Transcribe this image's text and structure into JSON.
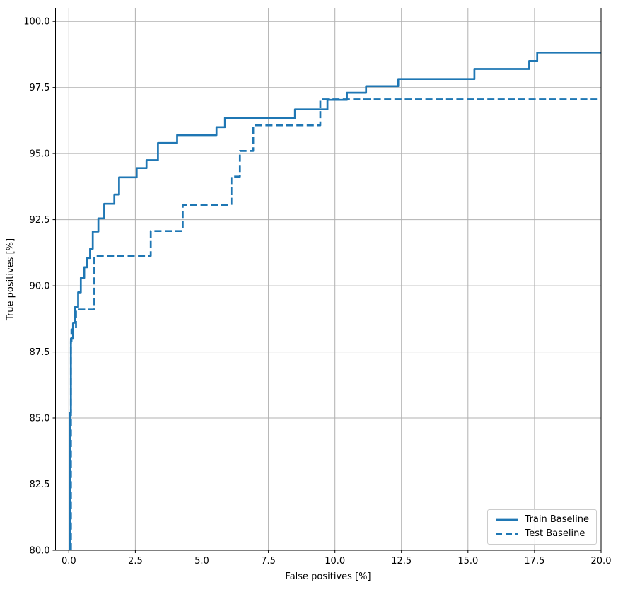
{
  "chart_data": {
    "type": "line",
    "subtype": "step-roc-curve",
    "xlabel": "False positives [%]",
    "ylabel": "True positives [%]",
    "xlim": [
      -0.5,
      20.0
    ],
    "ylim": [
      80.0,
      100.5
    ],
    "grid": true,
    "grid_color": "#b0b0b0",
    "axis_color": "#000000",
    "background_color": "#ffffff",
    "xticks": [
      0.0,
      2.5,
      5.0,
      7.5,
      10.0,
      12.5,
      15.0,
      17.5,
      20.0
    ],
    "xtick_labels": [
      "0.0",
      "2.5",
      "5.0",
      "7.5",
      "10.0",
      "12.5",
      "15.0",
      "17.5",
      "20.0"
    ],
    "yticks": [
      80.0,
      82.5,
      85.0,
      87.5,
      90.0,
      92.5,
      95.0,
      97.5,
      100.0
    ],
    "ytick_labels": [
      "80.0",
      "82.5",
      "85.0",
      "87.5",
      "90.0",
      "92.5",
      "95.0",
      "97.5",
      "100.0"
    ],
    "legend_position": "lower right",
    "series": [
      {
        "name": "Train Baseline",
        "color": "#1f77b4",
        "line_style": "solid",
        "line_width": 2.7,
        "points": [
          [
            0.05,
            80.0
          ],
          [
            0.05,
            85.2
          ],
          [
            0.08,
            85.2
          ],
          [
            0.08,
            88.0
          ],
          [
            0.16,
            88.0
          ],
          [
            0.16,
            88.6
          ],
          [
            0.24,
            88.6
          ],
          [
            0.24,
            89.2
          ],
          [
            0.35,
            89.2
          ],
          [
            0.35,
            89.75
          ],
          [
            0.45,
            89.75
          ],
          [
            0.45,
            90.3
          ],
          [
            0.58,
            90.3
          ],
          [
            0.58,
            90.7
          ],
          [
            0.69,
            90.7
          ],
          [
            0.69,
            91.05
          ],
          [
            0.8,
            91.05
          ],
          [
            0.8,
            91.4
          ],
          [
            0.9,
            91.4
          ],
          [
            0.9,
            92.05
          ],
          [
            1.11,
            92.05
          ],
          [
            1.11,
            92.55
          ],
          [
            1.33,
            92.55
          ],
          [
            1.33,
            93.1
          ],
          [
            1.71,
            93.1
          ],
          [
            1.71,
            93.45
          ],
          [
            1.89,
            93.45
          ],
          [
            1.89,
            94.1
          ],
          [
            2.55,
            94.1
          ],
          [
            2.55,
            94.45
          ],
          [
            2.92,
            94.45
          ],
          [
            2.92,
            94.75
          ],
          [
            3.35,
            94.75
          ],
          [
            3.35,
            95.4
          ],
          [
            4.07,
            95.4
          ],
          [
            4.07,
            95.7
          ],
          [
            5.55,
            95.7
          ],
          [
            5.55,
            96.0
          ],
          [
            5.87,
            96.0
          ],
          [
            5.87,
            96.35
          ],
          [
            8.5,
            96.35
          ],
          [
            8.5,
            96.67
          ],
          [
            9.72,
            96.67
          ],
          [
            9.72,
            97.03
          ],
          [
            10.45,
            97.03
          ],
          [
            10.45,
            97.3
          ],
          [
            11.17,
            97.3
          ],
          [
            11.17,
            97.55
          ],
          [
            12.38,
            97.55
          ],
          [
            12.38,
            97.82
          ],
          [
            15.24,
            97.82
          ],
          [
            15.24,
            98.2
          ],
          [
            17.3,
            98.2
          ],
          [
            17.3,
            98.5
          ],
          [
            17.6,
            98.5
          ],
          [
            17.6,
            98.82
          ],
          [
            20.0,
            98.82
          ]
        ]
      },
      {
        "name": "Test Baseline",
        "color": "#1f77b4",
        "line_style": "dashed",
        "line_width": 2.7,
        "points": [
          [
            0.08,
            80.0
          ],
          [
            0.08,
            87.9
          ],
          [
            0.1,
            87.9
          ],
          [
            0.1,
            88.35
          ],
          [
            0.27,
            88.35
          ],
          [
            0.27,
            89.1
          ],
          [
            0.96,
            89.1
          ],
          [
            0.96,
            91.13
          ],
          [
            3.08,
            91.13
          ],
          [
            3.08,
            92.07
          ],
          [
            4.28,
            92.07
          ],
          [
            4.28,
            93.06
          ],
          [
            6.11,
            93.06
          ],
          [
            6.11,
            94.13
          ],
          [
            6.43,
            94.13
          ],
          [
            6.43,
            95.1
          ],
          [
            6.93,
            95.1
          ],
          [
            6.93,
            96.07
          ],
          [
            9.45,
            96.07
          ],
          [
            9.45,
            97.05
          ],
          [
            20.0,
            97.05
          ]
        ]
      }
    ]
  }
}
